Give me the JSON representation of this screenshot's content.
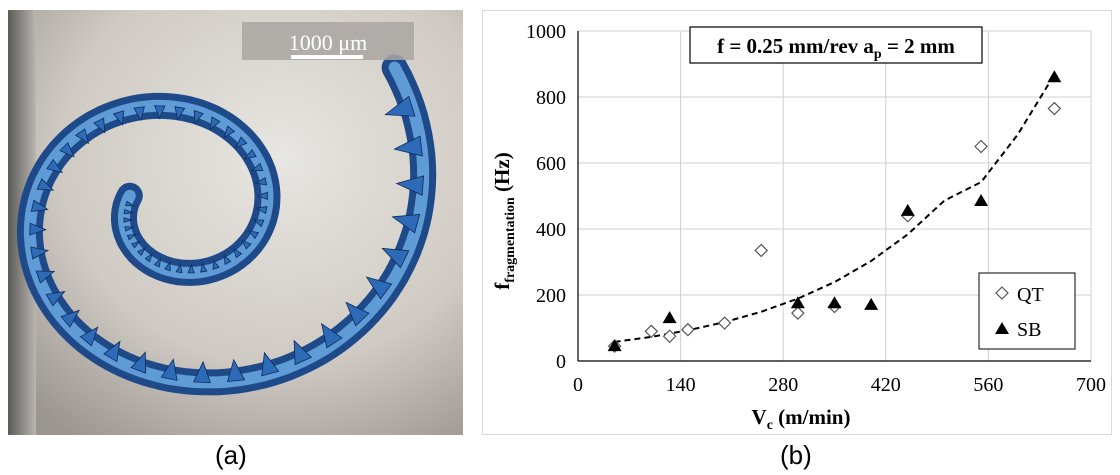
{
  "panel_a": {
    "caption": "(a)",
    "scale_bar_label": "1000 μm"
  },
  "panel_b": {
    "caption": "(b)"
  },
  "chart_data": {
    "type": "scatter",
    "title": "f = 0.25 mm/rev a",
    "title_subscript": "p",
    "title_tail": " = 2 mm",
    "xlabel": "V",
    "xlabel_subscript": "c",
    "xlabel_tail": " (m/min)",
    "ylabel": "f",
    "ylabel_subscript": "fragmentation",
    "ylabel_tail": " (Hz)",
    "xlim": [
      0,
      700
    ],
    "ylim": [
      0,
      1000
    ],
    "xticks": [
      0,
      140,
      280,
      420,
      560,
      700
    ],
    "yticks": [
      0,
      200,
      400,
      600,
      800,
      1000
    ],
    "grid": true,
    "legend_position": "bottom-right",
    "series": [
      {
        "name": "QT",
        "marker": "open-diamond",
        "color": "#555555",
        "x": [
          50,
          100,
          125,
          150,
          200,
          250,
          300,
          350,
          450,
          550,
          650
        ],
        "y": [
          45,
          90,
          75,
          95,
          115,
          335,
          145,
          165,
          440,
          650,
          765
        ]
      },
      {
        "name": "SB",
        "marker": "filled-triangle",
        "color": "#000000",
        "x": [
          50,
          125,
          300,
          350,
          400,
          450,
          550,
          650
        ],
        "y": [
          45,
          130,
          175,
          175,
          170,
          455,
          485,
          860
        ]
      }
    ],
    "trendline": {
      "style": "dashed",
      "x": [
        50,
        100,
        150,
        200,
        250,
        300,
        350,
        400,
        450,
        500,
        550,
        600,
        650
      ],
      "y": [
        58,
        73,
        93,
        118,
        149,
        189,
        239,
        303,
        384,
        486,
        542,
        686,
        868
      ]
    }
  }
}
